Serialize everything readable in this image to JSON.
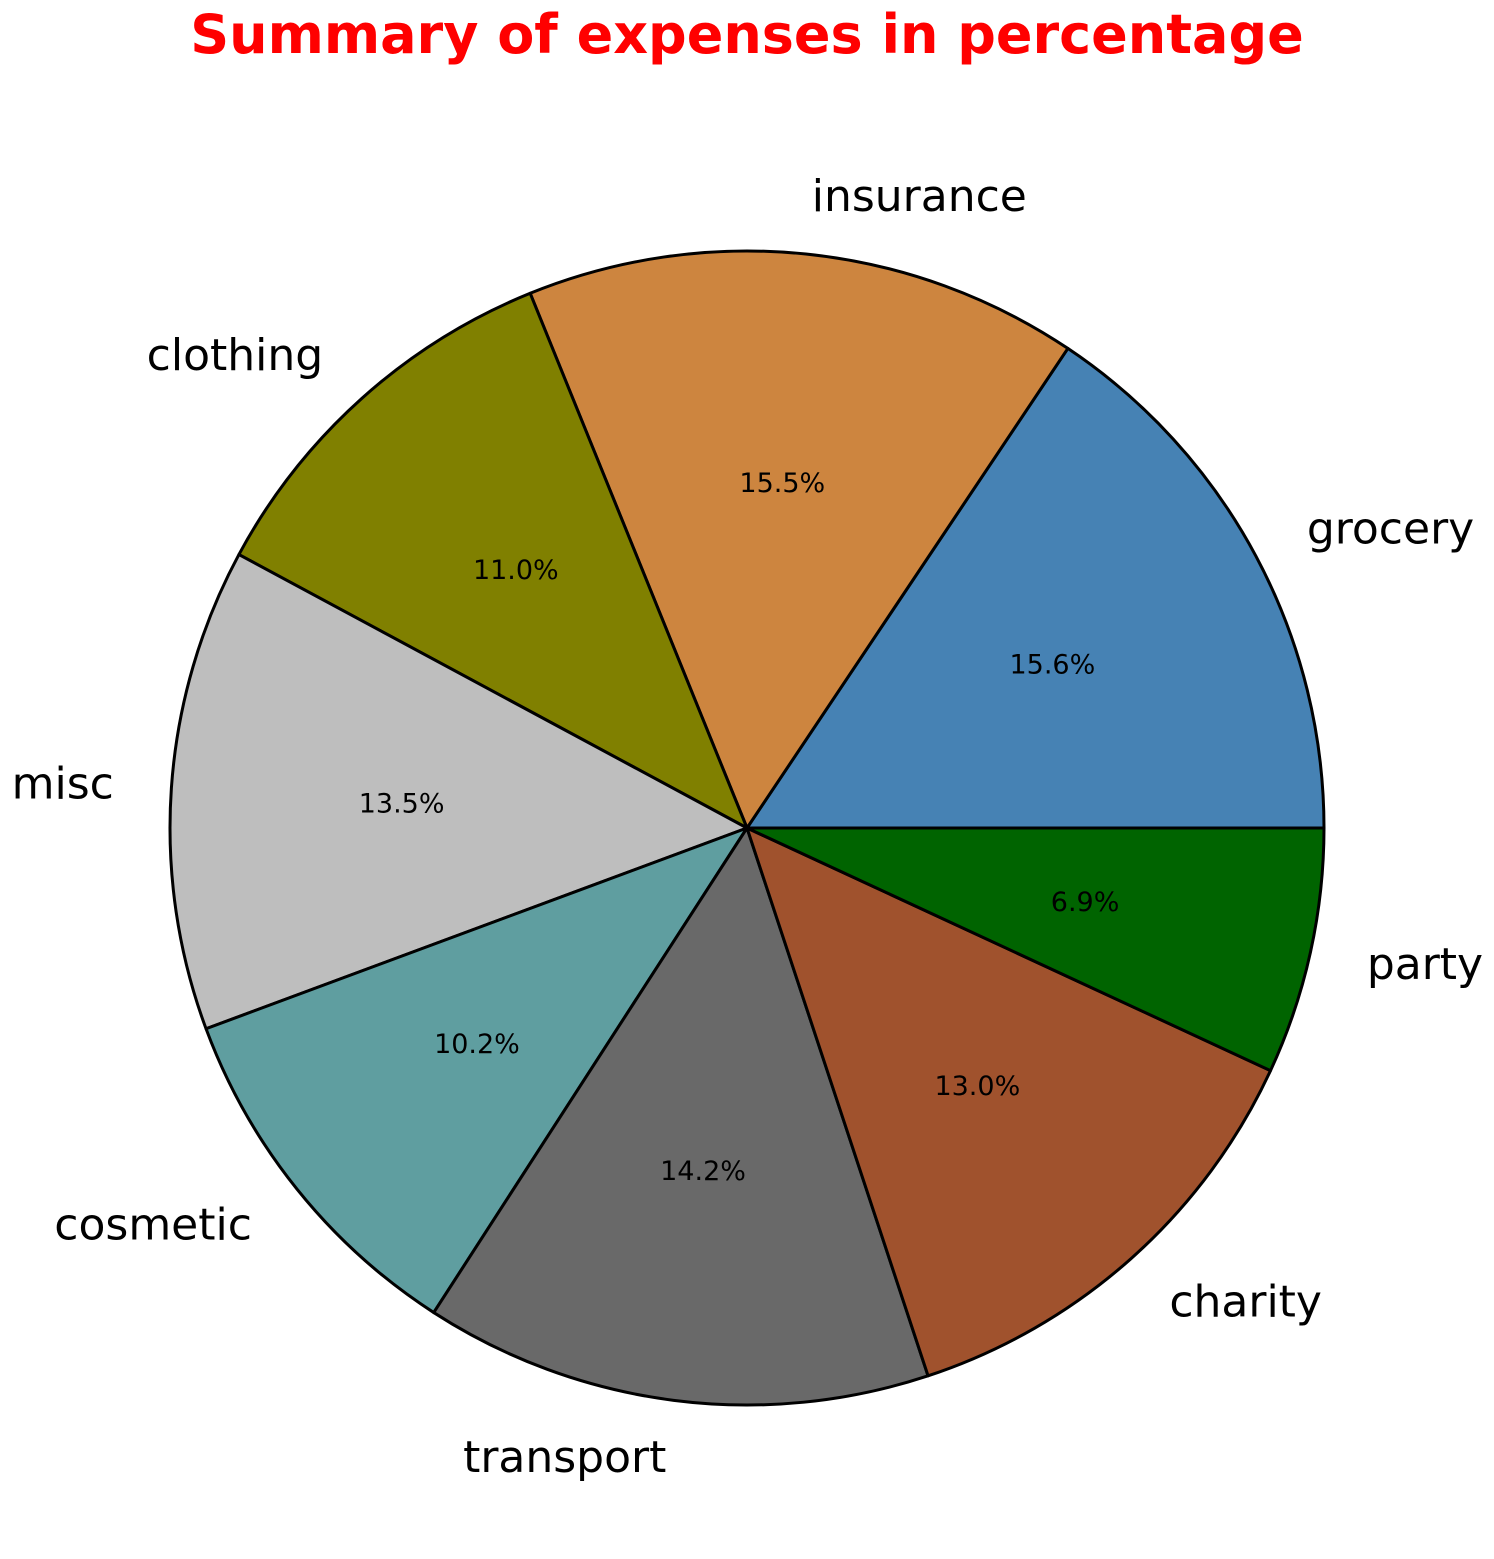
{
  "chart_data": {
    "type": "pie",
    "title": "Summary of expenses in percentage",
    "start_angle_deg": 0,
    "direction": "counterclockwise",
    "slices": [
      {
        "label": "grocery",
        "value": 15.6,
        "pct_label": "15.6%",
        "color": "#4682b4"
      },
      {
        "label": "insurance",
        "value": 15.5,
        "pct_label": "15.5%",
        "color": "#cd853f"
      },
      {
        "label": "clothing",
        "value": 11.0,
        "pct_label": "11.0%",
        "color": "#808000"
      },
      {
        "label": "misc",
        "value": 13.5,
        "pct_label": "13.5%",
        "color": "#bebebe"
      },
      {
        "label": "cosmetic",
        "value": 10.2,
        "pct_label": "10.2%",
        "color": "#5f9ea0"
      },
      {
        "label": "transport",
        "value": 14.2,
        "pct_label": "14.2%",
        "color": "#696969"
      },
      {
        "label": "charity",
        "value": 13.0,
        "pct_label": "13.0%",
        "color": "#a0522d"
      },
      {
        "label": "party",
        "value": 6.9,
        "pct_label": "6.9%",
        "color": "#006400"
      }
    ],
    "title_color": "#ff0000",
    "edge_color": "#000000"
  }
}
